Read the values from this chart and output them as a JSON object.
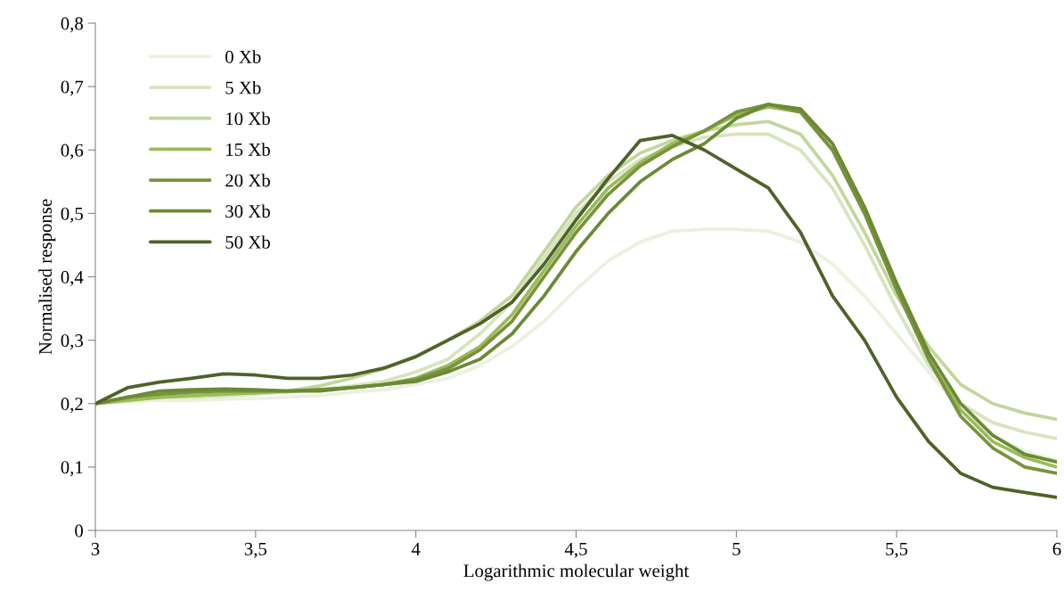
{
  "chart_data": {
    "type": "line",
    "xlabel": "Logarithmic molecular weight",
    "ylabel": "Normalised response",
    "x": [
      3.0,
      3.1,
      3.2,
      3.3,
      3.4,
      3.5,
      3.6,
      3.7,
      3.8,
      3.9,
      4.0,
      4.1,
      4.2,
      4.3,
      4.4,
      4.5,
      4.6,
      4.7,
      4.8,
      4.9,
      5.0,
      5.1,
      5.2,
      5.3,
      5.4,
      5.5,
      5.6,
      5.7,
      5.8,
      5.9,
      6.0
    ],
    "series": [
      {
        "name": "0 Xb",
        "color": "#ebf1de",
        "values": [
          0.2,
          0.203,
          0.205,
          0.205,
          0.207,
          0.208,
          0.21,
          0.213,
          0.218,
          0.222,
          0.23,
          0.24,
          0.26,
          0.29,
          0.33,
          0.38,
          0.425,
          0.455,
          0.472,
          0.475,
          0.475,
          0.472,
          0.455,
          0.42,
          0.37,
          0.31,
          0.25,
          0.19,
          0.15,
          0.125,
          0.11
        ]
      },
      {
        "name": "5 Xb",
        "color": "#d7e4bd",
        "values": [
          0.2,
          0.205,
          0.21,
          0.21,
          0.212,
          0.215,
          0.218,
          0.222,
          0.228,
          0.235,
          0.25,
          0.27,
          0.31,
          0.36,
          0.43,
          0.5,
          0.55,
          0.585,
          0.605,
          0.62,
          0.625,
          0.625,
          0.6,
          0.54,
          0.45,
          0.35,
          0.26,
          0.2,
          0.17,
          0.155,
          0.145
        ]
      },
      {
        "name": "10 Xb",
        "color": "#c3d69b",
        "values": [
          0.2,
          0.205,
          0.21,
          0.212,
          0.215,
          0.217,
          0.22,
          0.228,
          0.24,
          0.255,
          0.275,
          0.3,
          0.33,
          0.37,
          0.44,
          0.51,
          0.56,
          0.595,
          0.615,
          0.63,
          0.64,
          0.645,
          0.625,
          0.56,
          0.47,
          0.37,
          0.29,
          0.23,
          0.2,
          0.185,
          0.175
        ]
      },
      {
        "name": "15 Xb",
        "color": "#9bbb59",
        "values": [
          0.2,
          0.205,
          0.21,
          0.213,
          0.215,
          0.217,
          0.22,
          0.222,
          0.225,
          0.23,
          0.24,
          0.26,
          0.29,
          0.34,
          0.41,
          0.48,
          0.54,
          0.58,
          0.61,
          0.63,
          0.655,
          0.668,
          0.66,
          0.6,
          0.5,
          0.38,
          0.27,
          0.19,
          0.14,
          0.115,
          0.1
        ]
      },
      {
        "name": "20 Xb",
        "color": "#77933c",
        "values": [
          0.2,
          0.21,
          0.215,
          0.218,
          0.22,
          0.22,
          0.22,
          0.222,
          0.225,
          0.23,
          0.238,
          0.255,
          0.285,
          0.33,
          0.4,
          0.47,
          0.53,
          0.575,
          0.605,
          0.63,
          0.66,
          0.672,
          0.66,
          0.6,
          0.5,
          0.38,
          0.27,
          0.18,
          0.13,
          0.1,
          0.09
        ]
      },
      {
        "name": "30 Xb",
        "color": "#6a8a35",
        "values": [
          0.2,
          0.21,
          0.22,
          0.222,
          0.223,
          0.222,
          0.22,
          0.22,
          0.225,
          0.23,
          0.235,
          0.25,
          0.27,
          0.31,
          0.37,
          0.44,
          0.5,
          0.55,
          0.585,
          0.61,
          0.65,
          0.672,
          0.665,
          0.61,
          0.51,
          0.39,
          0.28,
          0.2,
          0.15,
          0.12,
          0.108
        ]
      },
      {
        "name": "50 Xb",
        "color": "#4f6228",
        "values": [
          0.2,
          0.225,
          0.234,
          0.24,
          0.247,
          0.245,
          0.24,
          0.24,
          0.245,
          0.256,
          0.274,
          0.3,
          0.326,
          0.36,
          0.42,
          0.49,
          0.555,
          0.615,
          0.623,
          0.6,
          0.57,
          0.54,
          0.47,
          0.37,
          0.3,
          0.21,
          0.14,
          0.09,
          0.068,
          0.06,
          0.052
        ]
      }
    ],
    "xlim": [
      3,
      6
    ],
    "xticks": [
      3,
      {
        "value": 3.5,
        "label": "3,5"
      },
      4,
      {
        "value": 4.5,
        "label": "4,5"
      },
      5,
      {
        "value": 5.5,
        "label": "5,5"
      },
      6
    ],
    "ylim": [
      0,
      0.8
    ],
    "yticks": [
      0,
      {
        "value": 0.1,
        "label": "0,1"
      },
      {
        "value": 0.2,
        "label": "0,2"
      },
      {
        "value": 0.3,
        "label": "0,3"
      },
      {
        "value": 0.4,
        "label": "0,4"
      },
      {
        "value": 0.5,
        "label": "0,5"
      },
      {
        "value": 0.6,
        "label": "0,6"
      },
      {
        "value": 0.7,
        "label": "0,7"
      },
      {
        "value": 0.8,
        "label": "0,8"
      }
    ],
    "grid": false,
    "legend": "top left",
    "marker": "none",
    "line_style": "solid"
  }
}
